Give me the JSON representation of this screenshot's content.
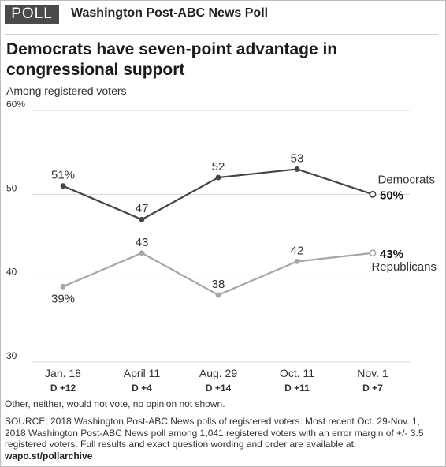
{
  "header": {
    "badge": "POLL",
    "poll_name": "Washington Post-ABC News Poll"
  },
  "title": "Democrats have seven-point advantage in congressional support",
  "subtitle": "Among registered voters",
  "colors": {
    "democrats": "#444444",
    "republicans": "#a6a6a6",
    "grid": "#d9d9d9",
    "badge_bg": "#4a4a4a"
  },
  "chart_data": {
    "type": "line",
    "categories": [
      "Jan. 18",
      "April 11",
      "Aug. 29",
      "Oct. 11",
      "Nov. 1"
    ],
    "sublabels": [
      "D +12",
      "D +4",
      "D +14",
      "D +11",
      "D +7"
    ],
    "ylim": [
      30,
      60
    ],
    "yticks": [
      30,
      40,
      50,
      60
    ],
    "ytick_labels": [
      "30",
      "40",
      "50",
      "60%"
    ],
    "grid": true,
    "series": [
      {
        "name": "Democrats",
        "values": [
          51,
          47,
          52,
          53,
          50
        ],
        "point_labels": [
          "51%",
          "47",
          "52",
          "53",
          "50%"
        ],
        "label_side": [
          "above",
          "above",
          "above",
          "above",
          "right"
        ]
      },
      {
        "name": "Republicans",
        "values": [
          39,
          43,
          38,
          42,
          43
        ],
        "point_labels": [
          "39%",
          "43",
          "38",
          "42",
          "43%"
        ],
        "label_side": [
          "below",
          "above",
          "above",
          "above",
          "right"
        ]
      }
    ]
  },
  "footnote": "Other, neither, would not vote, no opinion not shown.",
  "source": {
    "text": "SOURCE:  2018 Washington Post-ABC News polls of registered voters. Most recent Oct. 29-Nov. 1, 2018 Washington Post-ABC News poll among 1,041 registered voters with an error margin of +/- 3.5 registered voters. Full results and exact question wording and order are available at:",
    "link": "wapo.st/pollarchive"
  }
}
